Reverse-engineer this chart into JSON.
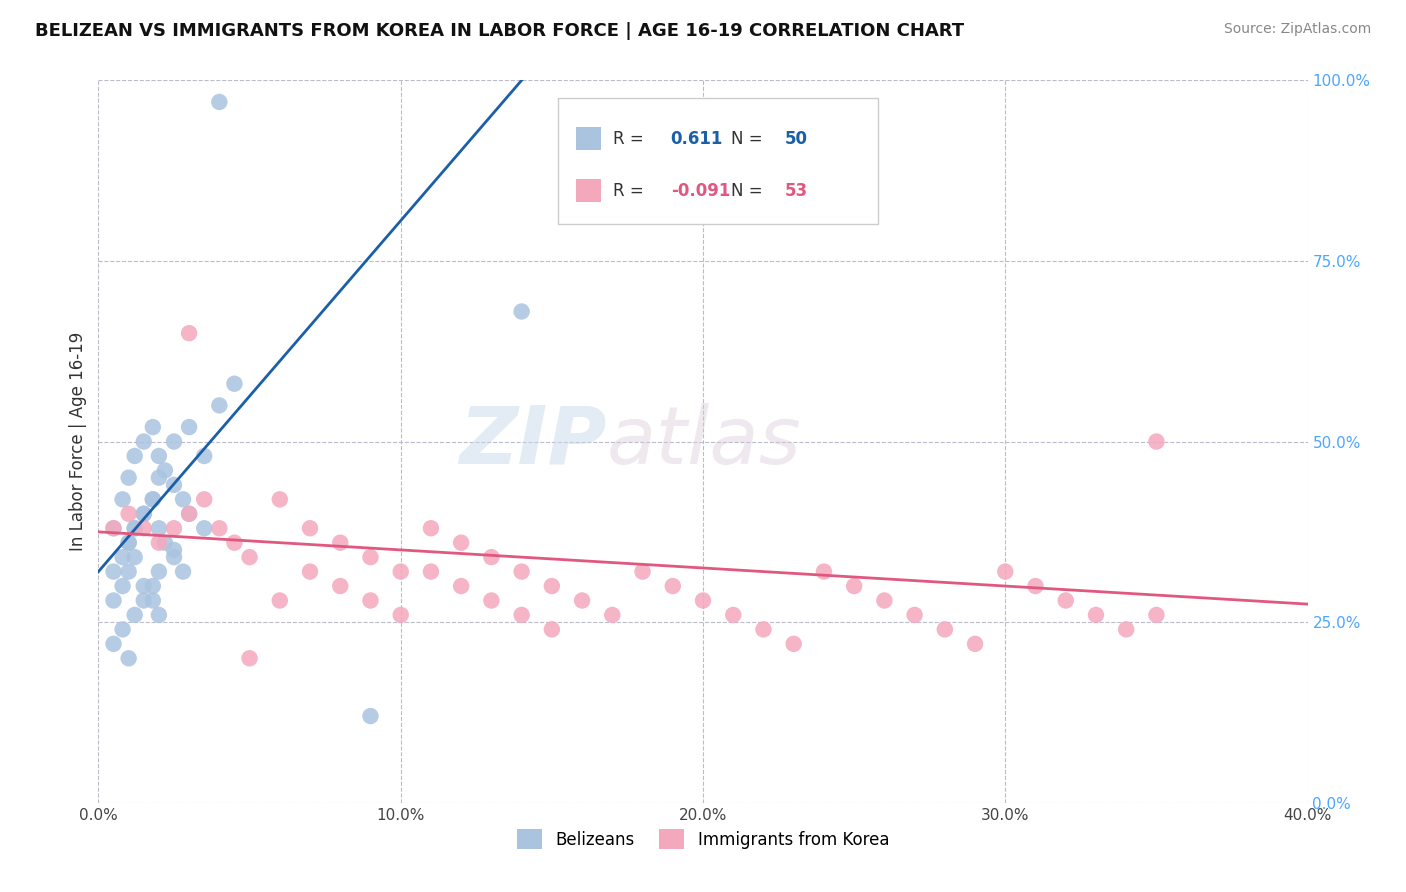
{
  "title": "BELIZEAN VS IMMIGRANTS FROM KOREA IN LABOR FORCE | AGE 16-19 CORRELATION CHART",
  "source": "Source: ZipAtlas.com",
  "ylabel": "In Labor Force | Age 16-19",
  "xlim": [
    0.0,
    0.4
  ],
  "ylim": [
    0.0,
    1.0
  ],
  "xticks": [
    0.0,
    0.1,
    0.2,
    0.3,
    0.4
  ],
  "xticklabels": [
    "0.0%",
    "10.0%",
    "20.0%",
    "30.0%",
    "40.0%"
  ],
  "yticks_right": [
    0.0,
    0.25,
    0.5,
    0.75,
    1.0
  ],
  "yticklabels_right": [
    "0.0%",
    "25.0%",
    "50.0%",
    "75.0%",
    "100.0%"
  ],
  "belizean_color": "#aac4e0",
  "korea_color": "#f4a8bc",
  "belizean_line_color": "#1a5fa8",
  "korea_line_color": "#e05880",
  "right_axis_color": "#4da6ff",
  "belizean_R": 0.611,
  "belizean_N": 50,
  "korea_R": -0.091,
  "korea_N": 53,
  "watermark_zip": "ZIP",
  "watermark_atlas": "atlas",
  "background_color": "#ffffff",
  "grid_color": "#bbbbcc",
  "title_fontsize": 13,
  "belizean_x": [
    0.005,
    0.008,
    0.01,
    0.012,
    0.015,
    0.018,
    0.02,
    0.022,
    0.025,
    0.028,
    0.01,
    0.012,
    0.015,
    0.018,
    0.02,
    0.025,
    0.03,
    0.035,
    0.04,
    0.045,
    0.005,
    0.008,
    0.01,
    0.012,
    0.015,
    0.018,
    0.02,
    0.022,
    0.025,
    0.028,
    0.005,
    0.008,
    0.01,
    0.012,
    0.015,
    0.018,
    0.02,
    0.025,
    0.03,
    0.035,
    0.005,
    0.008,
    0.01,
    0.012,
    0.015,
    0.018,
    0.02,
    0.04,
    0.14,
    0.09
  ],
  "belizean_y": [
    0.38,
    0.42,
    0.45,
    0.48,
    0.5,
    0.52,
    0.48,
    0.46,
    0.44,
    0.42,
    0.36,
    0.38,
    0.4,
    0.42,
    0.45,
    0.5,
    0.52,
    0.48,
    0.55,
    0.58,
    0.32,
    0.34,
    0.36,
    0.38,
    0.4,
    0.42,
    0.38,
    0.36,
    0.34,
    0.32,
    0.28,
    0.3,
    0.32,
    0.34,
    0.3,
    0.28,
    0.26,
    0.35,
    0.4,
    0.38,
    0.22,
    0.24,
    0.2,
    0.26,
    0.28,
    0.3,
    0.32,
    0.97,
    0.68,
    0.12
  ],
  "korea_x": [
    0.005,
    0.01,
    0.015,
    0.02,
    0.025,
    0.03,
    0.035,
    0.04,
    0.045,
    0.05,
    0.06,
    0.07,
    0.08,
    0.09,
    0.1,
    0.11,
    0.12,
    0.13,
    0.14,
    0.15,
    0.06,
    0.07,
    0.08,
    0.09,
    0.1,
    0.11,
    0.12,
    0.13,
    0.14,
    0.15,
    0.16,
    0.17,
    0.18,
    0.19,
    0.2,
    0.21,
    0.22,
    0.23,
    0.24,
    0.25,
    0.26,
    0.27,
    0.28,
    0.29,
    0.3,
    0.31,
    0.32,
    0.33,
    0.34,
    0.35,
    0.03,
    0.05,
    0.35
  ],
  "korea_y": [
    0.38,
    0.4,
    0.38,
    0.36,
    0.38,
    0.4,
    0.42,
    0.38,
    0.36,
    0.34,
    0.42,
    0.38,
    0.36,
    0.34,
    0.32,
    0.38,
    0.36,
    0.34,
    0.32,
    0.3,
    0.28,
    0.32,
    0.3,
    0.28,
    0.26,
    0.32,
    0.3,
    0.28,
    0.26,
    0.24,
    0.28,
    0.26,
    0.32,
    0.3,
    0.28,
    0.26,
    0.24,
    0.22,
    0.32,
    0.3,
    0.28,
    0.26,
    0.24,
    0.22,
    0.32,
    0.3,
    0.28,
    0.26,
    0.24,
    0.26,
    0.65,
    0.2,
    0.5
  ],
  "bel_line_x0": 0.0,
  "bel_line_y0": 0.32,
  "bel_line_x1": 0.14,
  "bel_line_y1": 1.0,
  "kor_line_x0": 0.0,
  "kor_line_y0": 0.375,
  "kor_line_x1": 0.4,
  "kor_line_y1": 0.275
}
